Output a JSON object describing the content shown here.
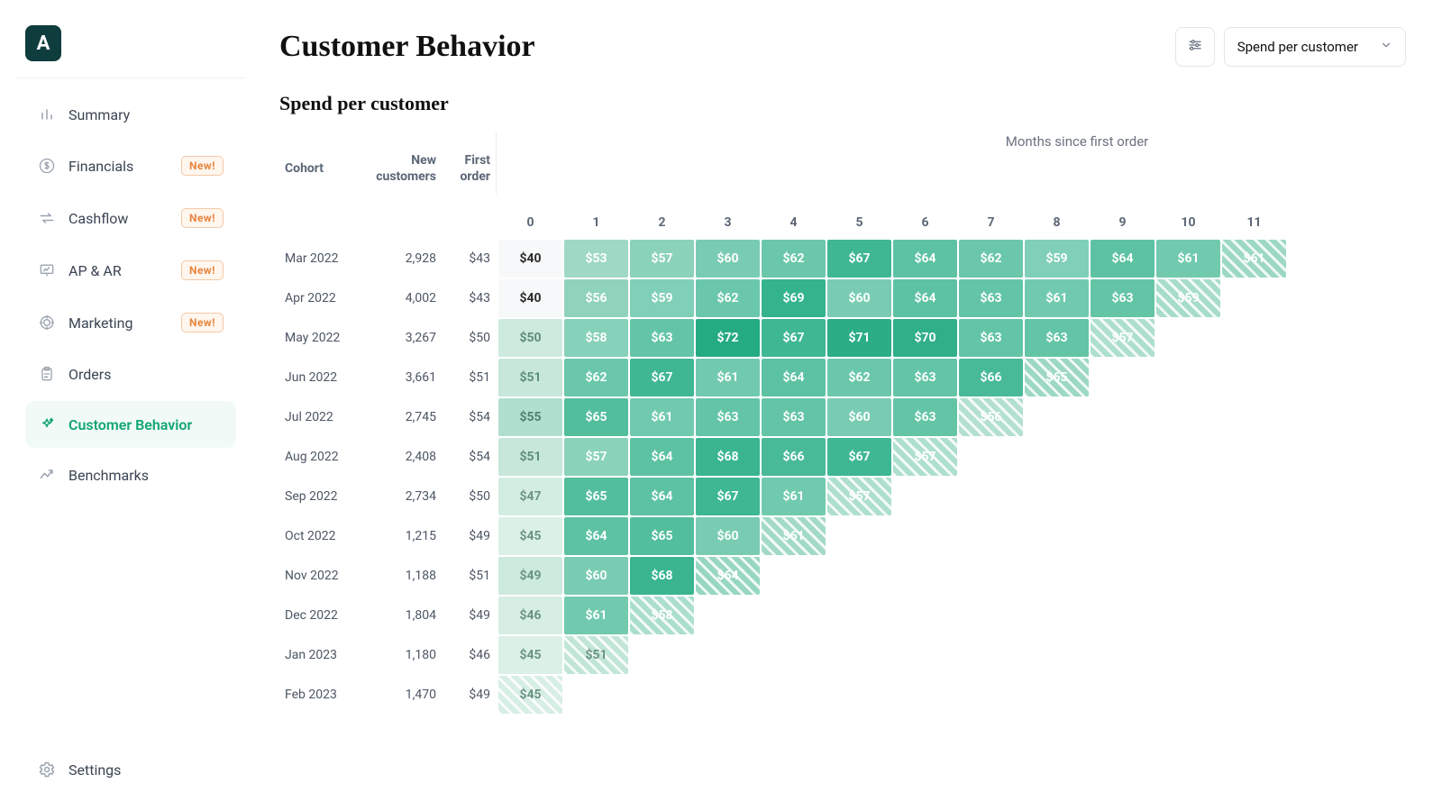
{
  "brand": {
    "letter": "A"
  },
  "sidebar": {
    "items": [
      {
        "label": "Summary",
        "icon": "bars",
        "new": false,
        "active": false
      },
      {
        "label": "Financials",
        "icon": "dollar",
        "new": true,
        "active": false
      },
      {
        "label": "Cashflow",
        "icon": "swap",
        "new": true,
        "active": false
      },
      {
        "label": "AP & AR",
        "icon": "presentation",
        "new": true,
        "active": false
      },
      {
        "label": "Marketing",
        "icon": "target",
        "new": true,
        "active": false
      },
      {
        "label": "Orders",
        "icon": "clipboard",
        "new": false,
        "active": false
      },
      {
        "label": "Customer Behavior",
        "icon": "sparkle",
        "new": false,
        "active": true
      },
      {
        "label": "Benchmarks",
        "icon": "trend",
        "new": false,
        "active": false
      }
    ],
    "settings_label": "Settings",
    "new_badge_text": "New!"
  },
  "header": {
    "title": "Customer Behavior",
    "dropdown_label": "Spend per customer"
  },
  "section": {
    "title": "Spend per customer",
    "axis_title": "Months since first order"
  },
  "table": {
    "col_cohort": "Cohort",
    "col_new_customers": "New customers",
    "col_first_order": "First order",
    "month_headers": [
      "0",
      "1",
      "2",
      "3",
      "4",
      "5",
      "6",
      "7",
      "8",
      "9",
      "10",
      "11"
    ],
    "rows": [
      {
        "cohort": "Mar 2022",
        "new_customers": "2,928",
        "first_order": "$43",
        "cells": [
          {
            "v": "$40",
            "bg": "#f7f8f9",
            "fg": "#2b2b2b"
          },
          {
            "v": "$53",
            "bg": "#9fd9c6",
            "fg": "#ffffff"
          },
          {
            "v": "$57",
            "bg": "#8bd2bb",
            "fg": "#ffffff"
          },
          {
            "v": "$60",
            "bg": "#79ccb2",
            "fg": "#ffffff"
          },
          {
            "v": "$62",
            "bg": "#6bc7aa",
            "fg": "#ffffff"
          },
          {
            "v": "$67",
            "bg": "#3fb793",
            "fg": "#ffffff"
          },
          {
            "v": "$64",
            "bg": "#5dc2a2",
            "fg": "#ffffff"
          },
          {
            "v": "$62",
            "bg": "#6bc7aa",
            "fg": "#ffffff"
          },
          {
            "v": "$59",
            "bg": "#80cfb7",
            "fg": "#ffffff"
          },
          {
            "v": "$64",
            "bg": "#5dc2a2",
            "fg": "#ffffff"
          },
          {
            "v": "$61",
            "bg": "#72caae",
            "fg": "#ffffff"
          },
          {
            "v": "$61",
            "bg": "#9cd8c4",
            "fg": "#ffffff",
            "hatched": true
          }
        ]
      },
      {
        "cohort": "Apr 2022",
        "new_customers": "4,002",
        "first_order": "$43",
        "cells": [
          {
            "v": "$40",
            "bg": "#f7f8f9",
            "fg": "#2b2b2b"
          },
          {
            "v": "$56",
            "bg": "#90d3bd",
            "fg": "#ffffff"
          },
          {
            "v": "$59",
            "bg": "#80cfb7",
            "fg": "#ffffff"
          },
          {
            "v": "$62",
            "bg": "#6bc7aa",
            "fg": "#ffffff"
          },
          {
            "v": "$69",
            "bg": "#35b38d",
            "fg": "#ffffff"
          },
          {
            "v": "$60",
            "bg": "#79ccb2",
            "fg": "#ffffff"
          },
          {
            "v": "$64",
            "bg": "#5dc2a2",
            "fg": "#ffffff"
          },
          {
            "v": "$63",
            "bg": "#64c5a6",
            "fg": "#ffffff"
          },
          {
            "v": "$61",
            "bg": "#72caae",
            "fg": "#ffffff"
          },
          {
            "v": "$63",
            "bg": "#64c5a6",
            "fg": "#ffffff"
          },
          {
            "v": "$59",
            "bg": "#a7dccb",
            "fg": "#ffffff",
            "hatched": true
          }
        ]
      },
      {
        "cohort": "May 2022",
        "new_customers": "3,267",
        "first_order": "$50",
        "cells": [
          {
            "v": "$50",
            "bg": "#cdeade",
            "fg": "#5e8d7c"
          },
          {
            "v": "$58",
            "bg": "#86d1b9",
            "fg": "#ffffff"
          },
          {
            "v": "$63",
            "bg": "#64c5a6",
            "fg": "#ffffff"
          },
          {
            "v": "$72",
            "bg": "#25ab82",
            "fg": "#ffffff"
          },
          {
            "v": "$67",
            "bg": "#3fb793",
            "fg": "#ffffff"
          },
          {
            "v": "$71",
            "bg": "#2bad85",
            "fg": "#ffffff"
          },
          {
            "v": "$70",
            "bg": "#30af88",
            "fg": "#ffffff"
          },
          {
            "v": "$63",
            "bg": "#64c5a6",
            "fg": "#ffffff"
          },
          {
            "v": "$63",
            "bg": "#64c5a6",
            "fg": "#ffffff"
          },
          {
            "v": "$57",
            "bg": "#aedfce",
            "fg": "#ffffff",
            "hatched": true
          }
        ]
      },
      {
        "cohort": "Jun 2022",
        "new_customers": "3,661",
        "first_order": "$51",
        "cells": [
          {
            "v": "$51",
            "bg": "#c6e7d9",
            "fg": "#5e8d7c"
          },
          {
            "v": "$62",
            "bg": "#6bc7aa",
            "fg": "#ffffff"
          },
          {
            "v": "$67",
            "bg": "#3fb793",
            "fg": "#ffffff"
          },
          {
            "v": "$61",
            "bg": "#72caae",
            "fg": "#ffffff"
          },
          {
            "v": "$64",
            "bg": "#5dc2a2",
            "fg": "#ffffff"
          },
          {
            "v": "$62",
            "bg": "#6bc7aa",
            "fg": "#ffffff"
          },
          {
            "v": "$63",
            "bg": "#64c5a6",
            "fg": "#ffffff"
          },
          {
            "v": "$66",
            "bg": "#49ba97",
            "fg": "#ffffff"
          },
          {
            "v": "$65",
            "bg": "#9cd8c4",
            "fg": "#ffffff",
            "hatched": true
          }
        ]
      },
      {
        "cohort": "Jul 2022",
        "new_customers": "2,745",
        "first_order": "$54",
        "cells": [
          {
            "v": "$55",
            "bg": "#b0dfcf",
            "fg": "#4e806f"
          },
          {
            "v": "$65",
            "bg": "#53be9c",
            "fg": "#ffffff"
          },
          {
            "v": "$61",
            "bg": "#72caae",
            "fg": "#ffffff"
          },
          {
            "v": "$63",
            "bg": "#64c5a6",
            "fg": "#ffffff"
          },
          {
            "v": "$63",
            "bg": "#64c5a6",
            "fg": "#ffffff"
          },
          {
            "v": "$60",
            "bg": "#79ccb2",
            "fg": "#ffffff"
          },
          {
            "v": "$63",
            "bg": "#64c5a6",
            "fg": "#ffffff"
          },
          {
            "v": "$56",
            "bg": "#b3e0d0",
            "fg": "#ffffff",
            "hatched": true
          }
        ]
      },
      {
        "cohort": "Aug 2022",
        "new_customers": "2,408",
        "first_order": "$54",
        "cells": [
          {
            "v": "$51",
            "bg": "#c6e7d9",
            "fg": "#5e8d7c"
          },
          {
            "v": "$57",
            "bg": "#8bd2bb",
            "fg": "#ffffff"
          },
          {
            "v": "$64",
            "bg": "#5dc2a2",
            "fg": "#ffffff"
          },
          {
            "v": "$68",
            "bg": "#3ab590",
            "fg": "#ffffff"
          },
          {
            "v": "$66",
            "bg": "#49ba97",
            "fg": "#ffffff"
          },
          {
            "v": "$67",
            "bg": "#3fb793",
            "fg": "#ffffff"
          },
          {
            "v": "$57",
            "bg": "#aedfce",
            "fg": "#ffffff",
            "hatched": true
          }
        ]
      },
      {
        "cohort": "Sep 2022",
        "new_customers": "2,734",
        "first_order": "$50",
        "cells": [
          {
            "v": "$47",
            "bg": "#d4ede2",
            "fg": "#6a9484"
          },
          {
            "v": "$65",
            "bg": "#53be9c",
            "fg": "#ffffff"
          },
          {
            "v": "$64",
            "bg": "#5dc2a2",
            "fg": "#ffffff"
          },
          {
            "v": "$67",
            "bg": "#3fb793",
            "fg": "#ffffff"
          },
          {
            "v": "$61",
            "bg": "#72caae",
            "fg": "#ffffff"
          },
          {
            "v": "$57",
            "bg": "#aedfce",
            "fg": "#ffffff",
            "hatched": true
          }
        ]
      },
      {
        "cohort": "Oct 2022",
        "new_customers": "1,215",
        "first_order": "$49",
        "cells": [
          {
            "v": "$45",
            "bg": "#dbf0e6",
            "fg": "#6a9484"
          },
          {
            "v": "$64",
            "bg": "#5dc2a2",
            "fg": "#ffffff"
          },
          {
            "v": "$65",
            "bg": "#53be9c",
            "fg": "#ffffff"
          },
          {
            "v": "$60",
            "bg": "#79ccb2",
            "fg": "#ffffff"
          },
          {
            "v": "$61",
            "bg": "#a2dac7",
            "fg": "#ffffff",
            "hatched": true
          }
        ]
      },
      {
        "cohort": "Nov 2022",
        "new_customers": "1,188",
        "first_order": "$51",
        "cells": [
          {
            "v": "$49",
            "bg": "#cdeade",
            "fg": "#6a9484"
          },
          {
            "v": "$60",
            "bg": "#79ccb2",
            "fg": "#ffffff"
          },
          {
            "v": "$68",
            "bg": "#3ab590",
            "fg": "#ffffff"
          },
          {
            "v": "$64",
            "bg": "#97d6c2",
            "fg": "#ffffff",
            "hatched": true
          }
        ]
      },
      {
        "cohort": "Dec 2022",
        "new_customers": "1,804",
        "first_order": "$49",
        "cells": [
          {
            "v": "$46",
            "bg": "#d7eee4",
            "fg": "#6a9484"
          },
          {
            "v": "$61",
            "bg": "#72caae",
            "fg": "#ffffff"
          },
          {
            "v": "$58",
            "bg": "#abdecd",
            "fg": "#ffffff",
            "hatched": true
          }
        ]
      },
      {
        "cohort": "Jan 2023",
        "new_customers": "1,180",
        "first_order": "$46",
        "cells": [
          {
            "v": "$45",
            "bg": "#dbf0e6",
            "fg": "#6a9484"
          },
          {
            "v": "$51",
            "bg": "#c1e5d6",
            "fg": "#6a9484",
            "hatched": true
          }
        ]
      },
      {
        "cohort": "Feb 2023",
        "new_customers": "1,470",
        "first_order": "$49",
        "cells": [
          {
            "v": "$45",
            "bg": "#d7eee4",
            "fg": "#6a9484",
            "hatched": true
          }
        ]
      }
    ]
  },
  "colors": {
    "accent": "#12a574",
    "badge_border": "#f4c9a6",
    "badge_bg": "#fff6ee",
    "badge_fg": "#e8853e"
  }
}
